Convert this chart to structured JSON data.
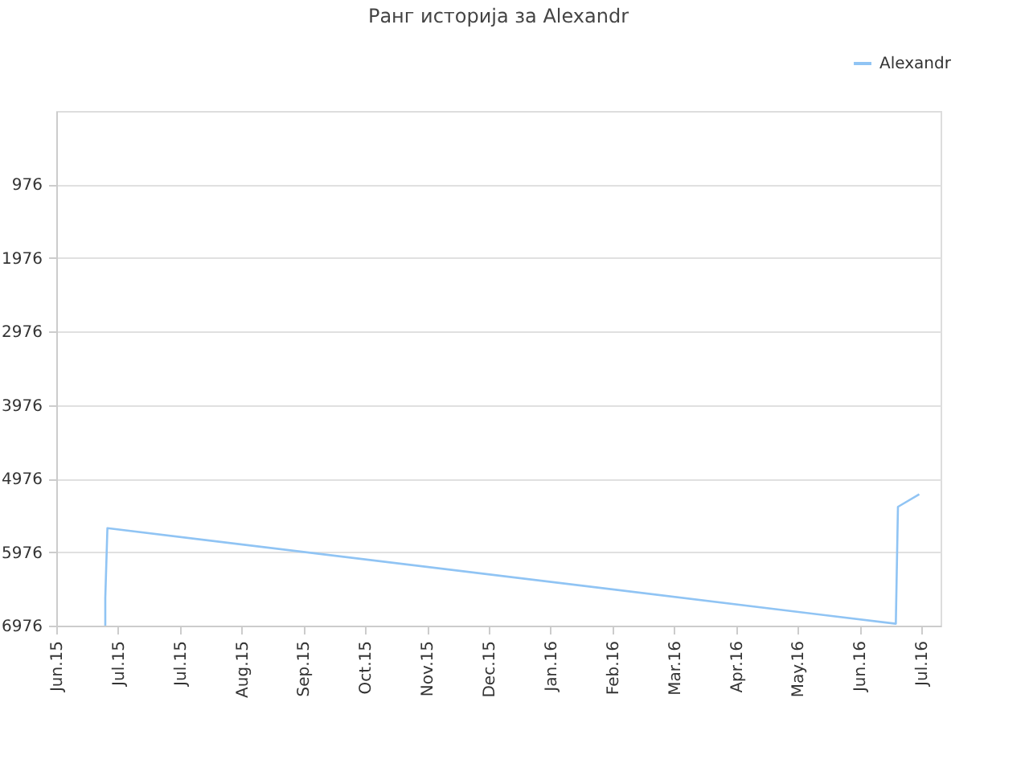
{
  "chart_data": {
    "type": "line",
    "title": "Ранг историја за Alexandr",
    "x": [
      "2015-06-25",
      "2015-06-25",
      "2015-06-26",
      "2016-06-30",
      "2016-07-01",
      "2016-07-11"
    ],
    "series": [
      {
        "name": "Alexandr",
        "color": "#90c4f4",
        "values": [
          6976,
          6600,
          5650,
          6950,
          5360,
          5190
        ]
      }
    ],
    "ylim": [
      6976,
      -24
    ],
    "yticks": [
      976,
      1976,
      2976,
      3976,
      4976,
      5976,
      6976
    ],
    "xlim": [
      "2015-06-02",
      "2016-07-21"
    ],
    "xticks": [
      {
        "value": "2015-06-02",
        "label": "Jun.15"
      },
      {
        "value": "2015-07-01",
        "label": "Jul.15"
      },
      {
        "value": "2015-07-30",
        "label": "Jul.15"
      },
      {
        "value": "2015-08-28",
        "label": "Aug.15"
      },
      {
        "value": "2015-09-26",
        "label": "Sep.15"
      },
      {
        "value": "2015-10-25",
        "label": "Oct.15"
      },
      {
        "value": "2015-11-23",
        "label": "Nov.15"
      },
      {
        "value": "2015-12-22",
        "label": "Dec.15"
      },
      {
        "value": "2016-01-20",
        "label": "Jan.16"
      },
      {
        "value": "2016-02-18",
        "label": "Feb.16"
      },
      {
        "value": "2016-03-18",
        "label": "Mar.16"
      },
      {
        "value": "2016-04-16",
        "label": "Apr.16"
      },
      {
        "value": "2016-05-15",
        "label": "May.16"
      },
      {
        "value": "2016-06-13",
        "label": "Jun.16"
      },
      {
        "value": "2016-07-12",
        "label": "Jul.16"
      }
    ],
    "grid": "y",
    "legend": "top right",
    "marker": "none",
    "line_style": "solid"
  }
}
